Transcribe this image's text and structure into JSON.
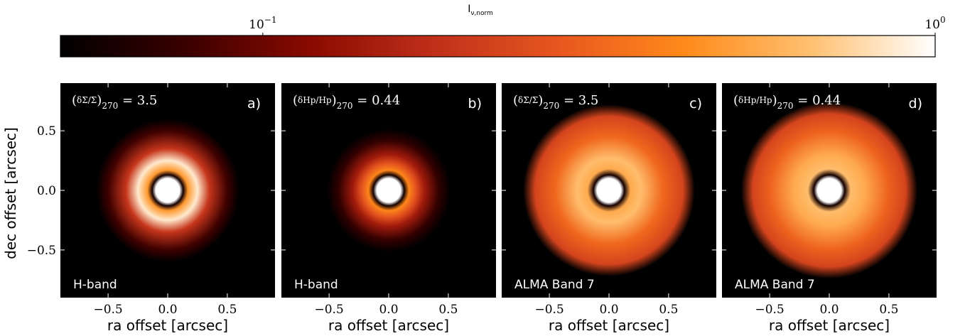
{
  "colorbar": {
    "label": "I",
    "label_sub": "ν,norm",
    "ticks": [
      {
        "value": 0.1,
        "base": "10",
        "exp": "−1"
      },
      {
        "value": 1.0,
        "base": "10",
        "exp": "0"
      }
    ],
    "range": [
      0.05,
      1.0
    ],
    "scale": "log",
    "colormap": [
      "#000000",
      "#3a0000",
      "#8a0a00",
      "#c0301a",
      "#e8571f",
      "#ff8a1a",
      "#ffc070",
      "#ffffff"
    ]
  },
  "chart_data": [
    {
      "type": "heatmap",
      "panel_label": "a)",
      "band": "H-band",
      "annotation": {
        "kind": "sigma",
        "subscript": "270",
        "value": "3.5"
      },
      "xlabel": "ra offset [arcsec]",
      "ylabel": "dec offset [arcsec]",
      "xlim": [
        -0.9,
        0.9
      ],
      "ylim": [
        -0.9,
        0.9
      ],
      "xticks": [
        -0.5,
        0.0,
        0.5
      ],
      "yticks": [
        0.5,
        0.0,
        -0.5
      ],
      "xtick_labels": [
        "−0.5",
        "0.0",
        "0.5"
      ],
      "ytick_labels": [
        "0.5",
        "0.0",
        "−0.5"
      ],
      "rings": [
        {
          "r": 0.0,
          "intensity": 1.0
        },
        {
          "r": 0.1,
          "intensity": 1.0
        },
        {
          "r": 0.13,
          "intensity": 0.05
        },
        {
          "r": 0.17,
          "intensity": 0.75
        },
        {
          "r": 0.25,
          "intensity": 0.95
        },
        {
          "r": 0.35,
          "intensity": 0.45
        },
        {
          "r": 0.5,
          "intensity": 0.15
        },
        {
          "r": 0.6,
          "intensity": 0.0
        }
      ]
    },
    {
      "type": "heatmap",
      "panel_label": "b)",
      "band": "H-band",
      "annotation": {
        "kind": "hp",
        "subscript": "270",
        "value": "0.44"
      },
      "xlabel": "ra offset [arcsec]",
      "xlim": [
        -0.9,
        0.9
      ],
      "ylim": [
        -0.9,
        0.9
      ],
      "xticks": [
        -0.5,
        0.0,
        0.5
      ],
      "xtick_labels": [
        "−0.5",
        "0.0",
        "0.5"
      ],
      "rings": [
        {
          "r": 0.0,
          "intensity": 1.0
        },
        {
          "r": 0.1,
          "intensity": 1.0
        },
        {
          "r": 0.13,
          "intensity": 0.05
        },
        {
          "r": 0.17,
          "intensity": 0.7
        },
        {
          "r": 0.23,
          "intensity": 0.55
        },
        {
          "r": 0.3,
          "intensity": 0.35
        },
        {
          "r": 0.42,
          "intensity": 0.12
        },
        {
          "r": 0.52,
          "intensity": 0.0
        }
      ]
    },
    {
      "type": "heatmap",
      "panel_label": "c)",
      "band": "ALMA Band 7",
      "annotation": {
        "kind": "sigma",
        "subscript": "270",
        "value": "3.5"
      },
      "xlabel": "ra offset [arcsec]",
      "xlim": [
        -0.9,
        0.9
      ],
      "ylim": [
        -0.9,
        0.9
      ],
      "xticks": [
        -0.5,
        0.0,
        0.5
      ],
      "xtick_labels": [
        "−0.5",
        "0.0",
        "0.5"
      ],
      "rings": [
        {
          "r": 0.0,
          "intensity": 1.0
        },
        {
          "r": 0.1,
          "intensity": 1.0
        },
        {
          "r": 0.13,
          "intensity": 0.05
        },
        {
          "r": 0.18,
          "intensity": 0.8
        },
        {
          "r": 0.27,
          "intensity": 0.85
        },
        {
          "r": 0.45,
          "intensity": 0.62
        },
        {
          "r": 0.62,
          "intensity": 0.5
        },
        {
          "r": 0.72,
          "intensity": 0.0
        }
      ]
    },
    {
      "type": "heatmap",
      "panel_label": "d)",
      "band": "ALMA Band 7",
      "annotation": {
        "kind": "hp",
        "subscript": "270",
        "value": "0.44"
      },
      "xlabel": "ra offset [arcsec]",
      "xlim": [
        -0.9,
        0.9
      ],
      "ylim": [
        -0.9,
        0.9
      ],
      "xticks": [
        -0.5,
        0.0,
        0.5
      ],
      "xtick_labels": [
        "−0.5",
        "0.0",
        "0.5"
      ],
      "rings": [
        {
          "r": 0.0,
          "intensity": 1.0
        },
        {
          "r": 0.1,
          "intensity": 1.0
        },
        {
          "r": 0.13,
          "intensity": 0.05
        },
        {
          "r": 0.18,
          "intensity": 0.85
        },
        {
          "r": 0.3,
          "intensity": 0.8
        },
        {
          "r": 0.5,
          "intensity": 0.6
        },
        {
          "r": 0.64,
          "intensity": 0.5
        },
        {
          "r": 0.74,
          "intensity": 0.0
        }
      ]
    }
  ]
}
